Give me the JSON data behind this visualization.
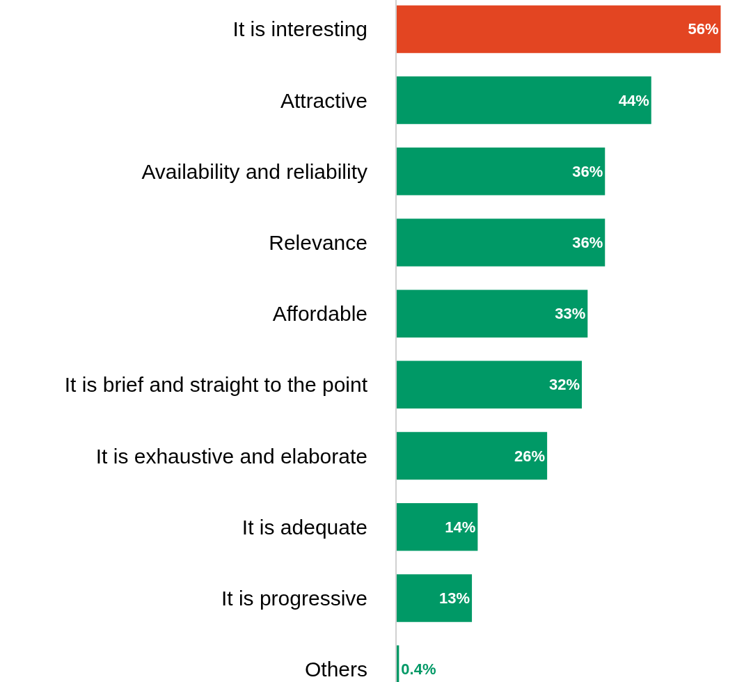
{
  "chart_data": {
    "type": "bar",
    "orientation": "horizontal",
    "categories": [
      "It is interesting",
      "Attractive",
      "Availability and reliability",
      "Relevance",
      "Affordable",
      "It is brief and straight to the point",
      "It is exhaustive and elaborate",
      "It is adequate",
      "It is progressive",
      "Others"
    ],
    "values": [
      56,
      44,
      36,
      36,
      33,
      32,
      26,
      14,
      13,
      0.4
    ],
    "value_labels": [
      "56%",
      "44%",
      "36%",
      "36%",
      "33%",
      "32%",
      "26%",
      "14%",
      "13%",
      "0.4%"
    ],
    "colors": [
      "#e34522",
      "#009966",
      "#009966",
      "#009966",
      "#009966",
      "#009966",
      "#009966",
      "#009966",
      "#009966",
      "#009966"
    ],
    "tick_labels": "y",
    "legend": false
  }
}
